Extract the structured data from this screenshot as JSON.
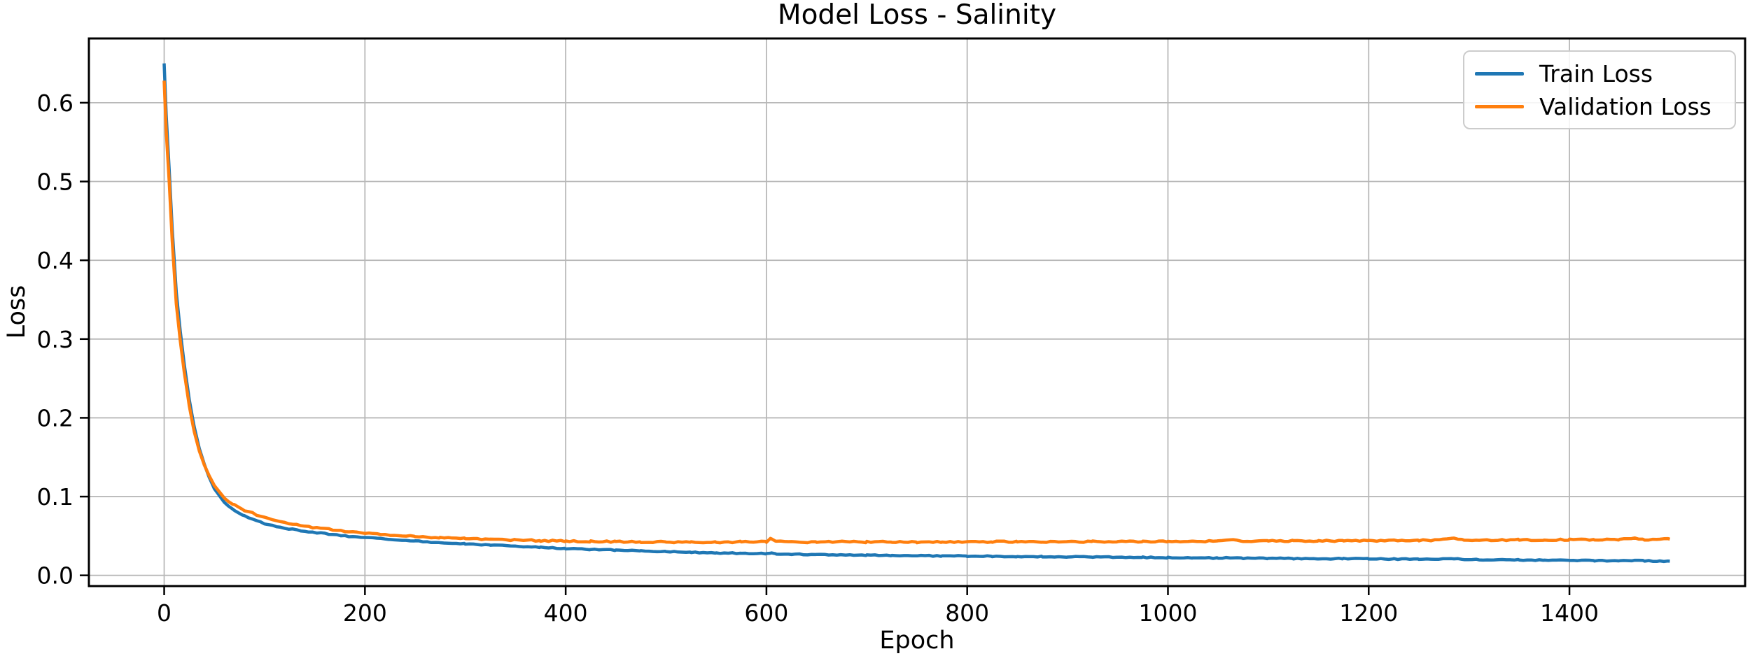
{
  "figure": {
    "title": "Model Loss - Salinity",
    "xlabel": "Epoch",
    "ylabel": "Loss"
  },
  "legend": {
    "position": "upper right",
    "entries": [
      {
        "label": "Train Loss",
        "color": "#1f77b4"
      },
      {
        "label": "Validation Loss",
        "color": "#ff7f0e"
      }
    ]
  },
  "colors": {
    "background": "#ffffff",
    "grid": "#b8b8b8",
    "spine": "#000000",
    "train_line": "#1f77b4",
    "validation_line": "#ff7f0e"
  },
  "chart_data": {
    "type": "line",
    "title": "Model Loss - Salinity",
    "xlabel": "Epoch",
    "ylabel": "Loss",
    "grid": true,
    "legend_position": "upper right",
    "xlim": [
      -75,
      1575
    ],
    "ylim": [
      -0.0136,
      0.6816
    ],
    "xticks": [
      0,
      200,
      400,
      600,
      800,
      1000,
      1200,
      1400
    ],
    "yticks": [
      0.0,
      0.1,
      0.2,
      0.3,
      0.4,
      0.5,
      0.6
    ],
    "x": [
      0,
      2,
      5,
      8,
      12,
      16,
      20,
      25,
      30,
      35,
      40,
      45,
      50,
      60,
      70,
      80,
      100,
      120,
      140,
      160,
      180,
      200,
      225,
      250,
      275,
      300,
      325,
      350,
      375,
      400,
      425,
      450,
      475,
      500,
      525,
      550,
      575,
      600,
      605,
      610,
      625,
      650,
      675,
      700,
      725,
      750,
      775,
      800,
      825,
      850,
      875,
      900,
      925,
      950,
      975,
      1000,
      1025,
      1050,
      1065,
      1075,
      1100,
      1125,
      1150,
      1175,
      1200,
      1225,
      1250,
      1270,
      1285,
      1295,
      1310,
      1325,
      1350,
      1375,
      1400,
      1425,
      1450,
      1465,
      1475,
      1490,
      1500
    ],
    "series": [
      {
        "name": "Train Loss",
        "color": "#1f77b4",
        "values": [
          0.65,
          0.585,
          0.515,
          0.44,
          0.36,
          0.31,
          0.268,
          0.223,
          0.188,
          0.161,
          0.141,
          0.124,
          0.11,
          0.0925,
          0.0825,
          0.0755,
          0.0655,
          0.06,
          0.056,
          0.053,
          0.05,
          0.048,
          0.0455,
          0.0435,
          0.0415,
          0.04,
          0.0385,
          0.037,
          0.0355,
          0.034,
          0.033,
          0.032,
          0.031,
          0.03,
          0.0292,
          0.0285,
          0.028,
          0.0275,
          0.0285,
          0.0272,
          0.0268,
          0.0263,
          0.0258,
          0.0255,
          0.0252,
          0.0249,
          0.0247,
          0.0245,
          0.0242,
          0.024,
          0.0238,
          0.0235,
          0.0233,
          0.023,
          0.0228,
          0.0225,
          0.0222,
          0.022,
          0.0225,
          0.0218,
          0.0215,
          0.0213,
          0.0212,
          0.0211,
          0.021,
          0.0207,
          0.0204,
          0.0203,
          0.0215,
          0.0202,
          0.02,
          0.0198,
          0.0196,
          0.0193,
          0.019,
          0.0188,
          0.0186,
          0.019,
          0.0184,
          0.0182,
          0.018
        ]
      },
      {
        "name": "Validation Loss",
        "color": "#ff7f0e",
        "values": [
          0.628,
          0.565,
          0.5,
          0.425,
          0.345,
          0.298,
          0.258,
          0.215,
          0.182,
          0.158,
          0.14,
          0.126,
          0.114,
          0.098,
          0.089,
          0.0825,
          0.0735,
          0.067,
          0.062,
          0.059,
          0.056,
          0.054,
          0.0515,
          0.0495,
          0.0478,
          0.0465,
          0.0455,
          0.0448,
          0.044,
          0.0435,
          0.043,
          0.0428,
          0.0425,
          0.0423,
          0.0424,
          0.0422,
          0.0424,
          0.0428,
          0.047,
          0.043,
          0.0424,
          0.0422,
          0.0425,
          0.0423,
          0.0425,
          0.0422,
          0.0426,
          0.0424,
          0.0426,
          0.0425,
          0.0428,
          0.0426,
          0.0428,
          0.0427,
          0.0429,
          0.043,
          0.0432,
          0.0435,
          0.0455,
          0.0434,
          0.0436,
          0.0437,
          0.0438,
          0.0439,
          0.044,
          0.0442,
          0.0444,
          0.0446,
          0.048,
          0.0447,
          0.0446,
          0.0448,
          0.045,
          0.045,
          0.0452,
          0.0453,
          0.0455,
          0.047,
          0.0456,
          0.0458,
          0.046
        ]
      }
    ],
    "noise": {
      "amplitude": [
        0.0006,
        0.0009
      ],
      "start_epoch": 60
    },
    "line_width": 4.5
  }
}
